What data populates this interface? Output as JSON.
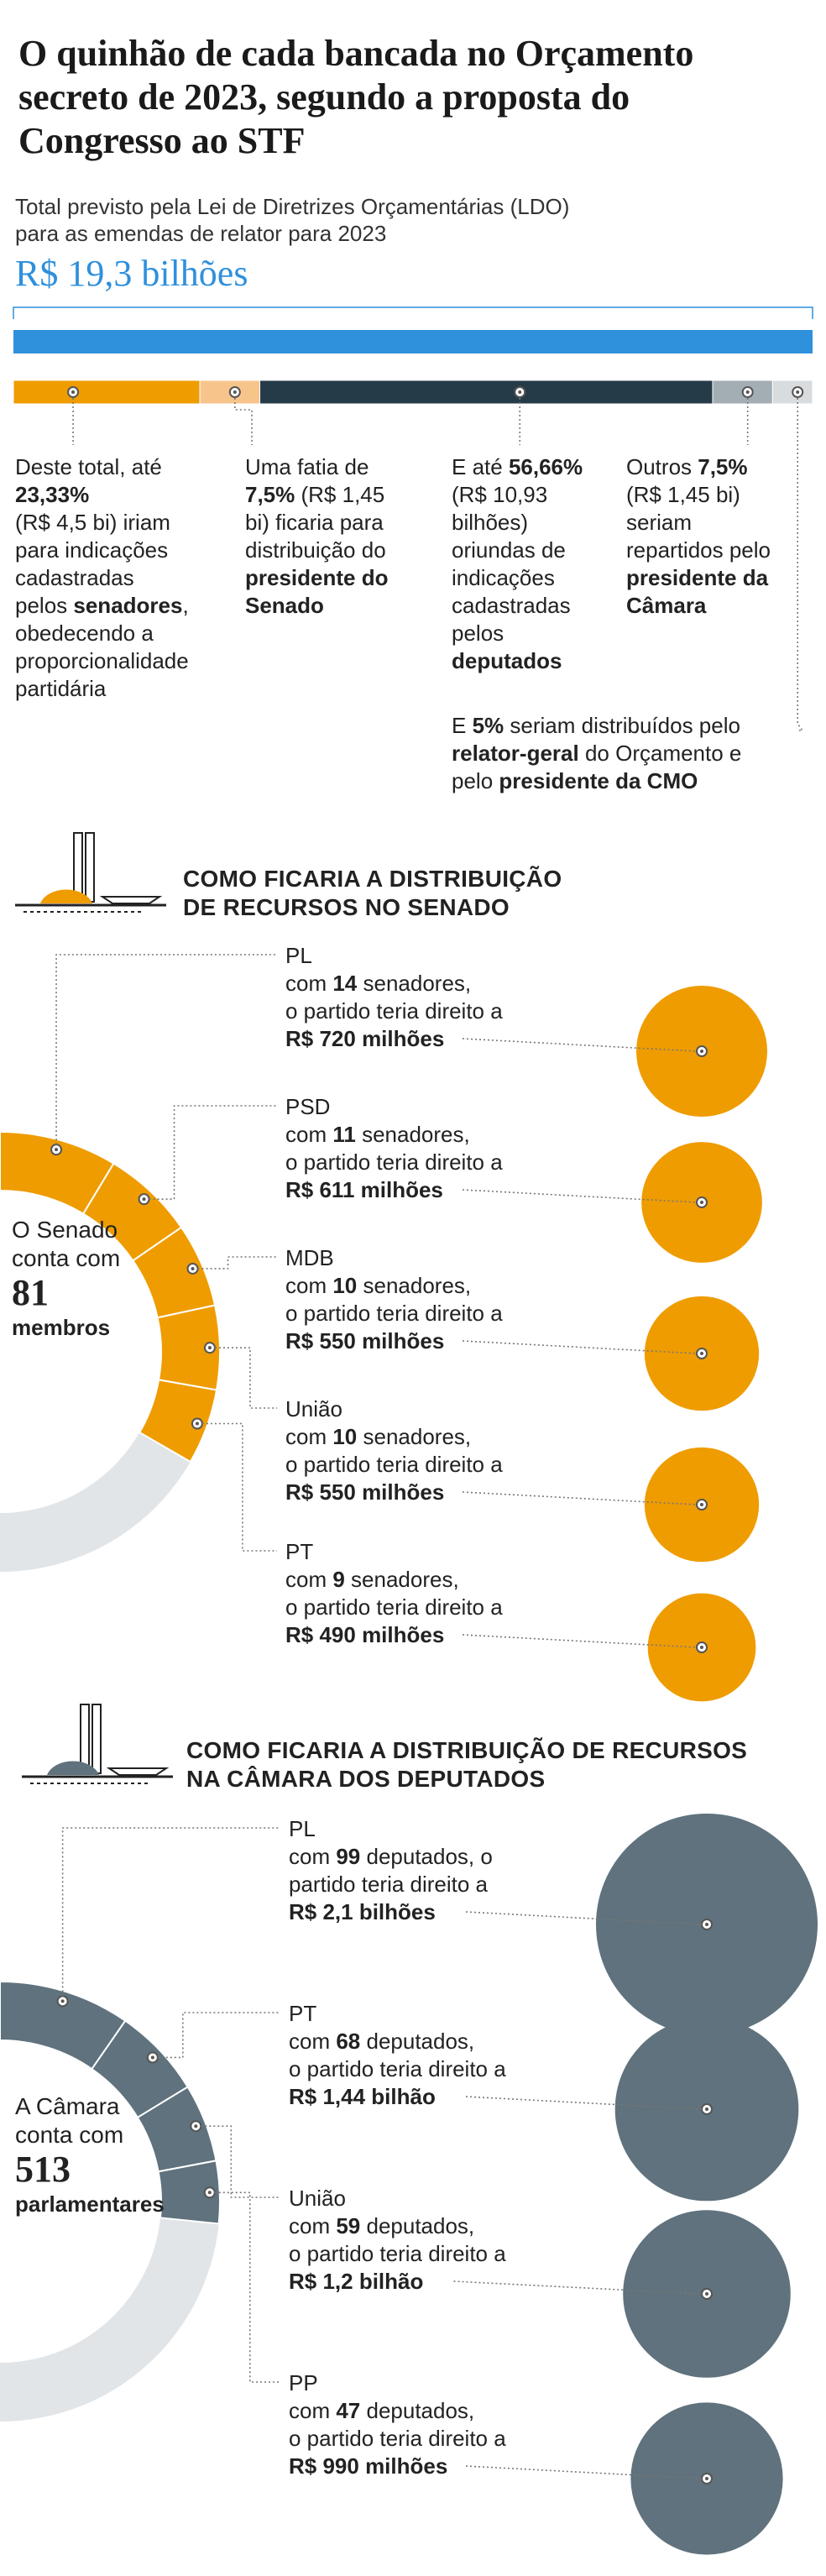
{
  "header": {
    "title_line1": "O quinhão de cada bancada no Orçamento",
    "title_line2": "secreto de 2023, segundo a proposta do",
    "title_line3": "Congresso ao STF",
    "subtitle_line1": "Total previsto pela Lei de Diretrizes Orçamentárias (LDO)",
    "subtitle_line2": "para as emendas de relator para 2023",
    "total": "R$ 19,3 bilhões"
  },
  "colors": {
    "blue": "#2f90dc",
    "senado": "#ef9c00",
    "senado_light": "#f7c58c",
    "camara": "#5f727d",
    "deputados": "#253b48",
    "outros": "#a3aeb4",
    "relator": "#d8dcdf",
    "ring_bg": "#e1e5e8"
  },
  "chart_data": [
    {
      "type": "bar",
      "title": "Total previsto pela Lei de Diretrizes Orçamentárias (LDO) para as emendas de relator para 2023",
      "stacked": true,
      "unit": "%",
      "categories": [
        "senadores",
        "presidente do Senado",
        "deputados",
        "presidente da Câmara",
        "relator-geral e presidente da CMO"
      ],
      "values": [
        23.33,
        7.5,
        56.66,
        7.5,
        5
      ],
      "amounts": [
        "R$ 4,5 bi",
        "R$ 1,45 bi",
        "R$ 10,93 bilhões",
        "R$ 1,45 bi",
        ""
      ]
    },
    {
      "type": "scatter",
      "title": "COMO FICARIA A DISTRIBUIÇÃO DE RECURSOS NO SENADO",
      "unit": "R$ milhões",
      "categories": [
        "PL",
        "PSD",
        "MDB",
        "União",
        "PT"
      ],
      "seats": [
        14,
        11,
        10,
        10,
        9
      ],
      "values": [
        720,
        611,
        550,
        550,
        490
      ],
      "total_members": 81
    },
    {
      "type": "scatter",
      "title": "COMO FICARIA A DISTRIBUIÇÃO DE RECURSOS NA CÂMARA DOS DEPUTADOS",
      "unit": "R$ milhões",
      "categories": [
        "PL",
        "PT",
        "União",
        "PP"
      ],
      "seats": [
        99,
        68,
        59,
        47
      ],
      "values": [
        2100,
        1440,
        1200,
        990
      ],
      "total_members": 513
    }
  ],
  "notes": {
    "n1": {
      "l1": "Deste total, até",
      "pct": "23,33%",
      "l3": "(R$ 4,5 bi) iriam",
      "l4": "para indicações",
      "l5": "cadastradas",
      "l6a": "pelos ",
      "l6b": "senadores",
      "l6c": ",",
      "l7": "obedecendo a",
      "l8": "proporcionalidade",
      "l9": "partidária"
    },
    "n2": {
      "l1": "Uma fatia de",
      "pct": "7,5%",
      "l2b": " (R$ 1,45",
      "l3": "bi) ficaria para",
      "l4": "distribuição do",
      "l5": "presidente do",
      "l6": "Senado"
    },
    "n3": {
      "l1a": "E até ",
      "pct": "56,66%",
      "l2": "(R$ 10,93",
      "l3": "bilhões)",
      "l4": "oriundas de",
      "l5": "indicações",
      "l6": "cadastradas",
      "l7": "pelos",
      "l8": "deputados"
    },
    "n4": {
      "l1a": "Outros ",
      "pct": "7,5%",
      "l2": "(R$ 1,45 bi)",
      "l3": "seriam",
      "l4": "repartidos pelo",
      "l5": "presidente da",
      "l6": "Câmara"
    },
    "n5": {
      "l1a": "E ",
      "pct": "5%",
      "l1c": " seriam distribuídos pelo",
      "l2a": "relator-geral",
      "l2b": " do Orçamento e",
      "l3a": "pelo ",
      "l3b": "presidente da CMO"
    }
  },
  "senado": {
    "header_line1": "COMO FICARIA A DISTRIBUIÇÃO",
    "header_line2": "DE RECURSOS NO SENADO",
    "lead1": "O Senado",
    "lead2": "conta com",
    "count": "81",
    "lead3": "membros",
    "with": "com",
    "label_seats": "senadores,",
    "line2": "o partido teria direito a",
    "parties": [
      {
        "name": "PL",
        "seats": "14",
        "amount": "R$ 720 milhões"
      },
      {
        "name": "PSD",
        "seats": "11",
        "amount": "R$ 611 milhões"
      },
      {
        "name": "MDB",
        "seats": "10",
        "amount": "R$ 550 milhões"
      },
      {
        "name": "União",
        "seats": "10",
        "amount": "R$ 550 milhões"
      },
      {
        "name": "PT",
        "seats": "9",
        "amount": "R$ 490 milhões"
      }
    ]
  },
  "camara": {
    "header_line1": "COMO FICARIA A DISTRIBUIÇÃO DE RECURSOS",
    "header_line2": "NA CÂMARA DOS DEPUTADOS",
    "lead1": "A Câmara",
    "lead2": "conta com",
    "count": "513",
    "lead3": "parlamentares",
    "with": "com",
    "label_seats": "deputados,",
    "label_seats_o": "deputados, o",
    "line2": "o partido teria direito a",
    "line2_short": "partido teria direito a",
    "parties": [
      {
        "name": "PL",
        "seats": "99",
        "amount": "R$ 2,1 bilhões"
      },
      {
        "name": "PT",
        "seats": "68",
        "amount": "R$ 1,44 bilhão"
      },
      {
        "name": "União",
        "seats": "59",
        "amount": "R$ 1,2 bilhão"
      },
      {
        "name": "PP",
        "seats": "47",
        "amount": "R$ 990 milhões"
      }
    ]
  }
}
